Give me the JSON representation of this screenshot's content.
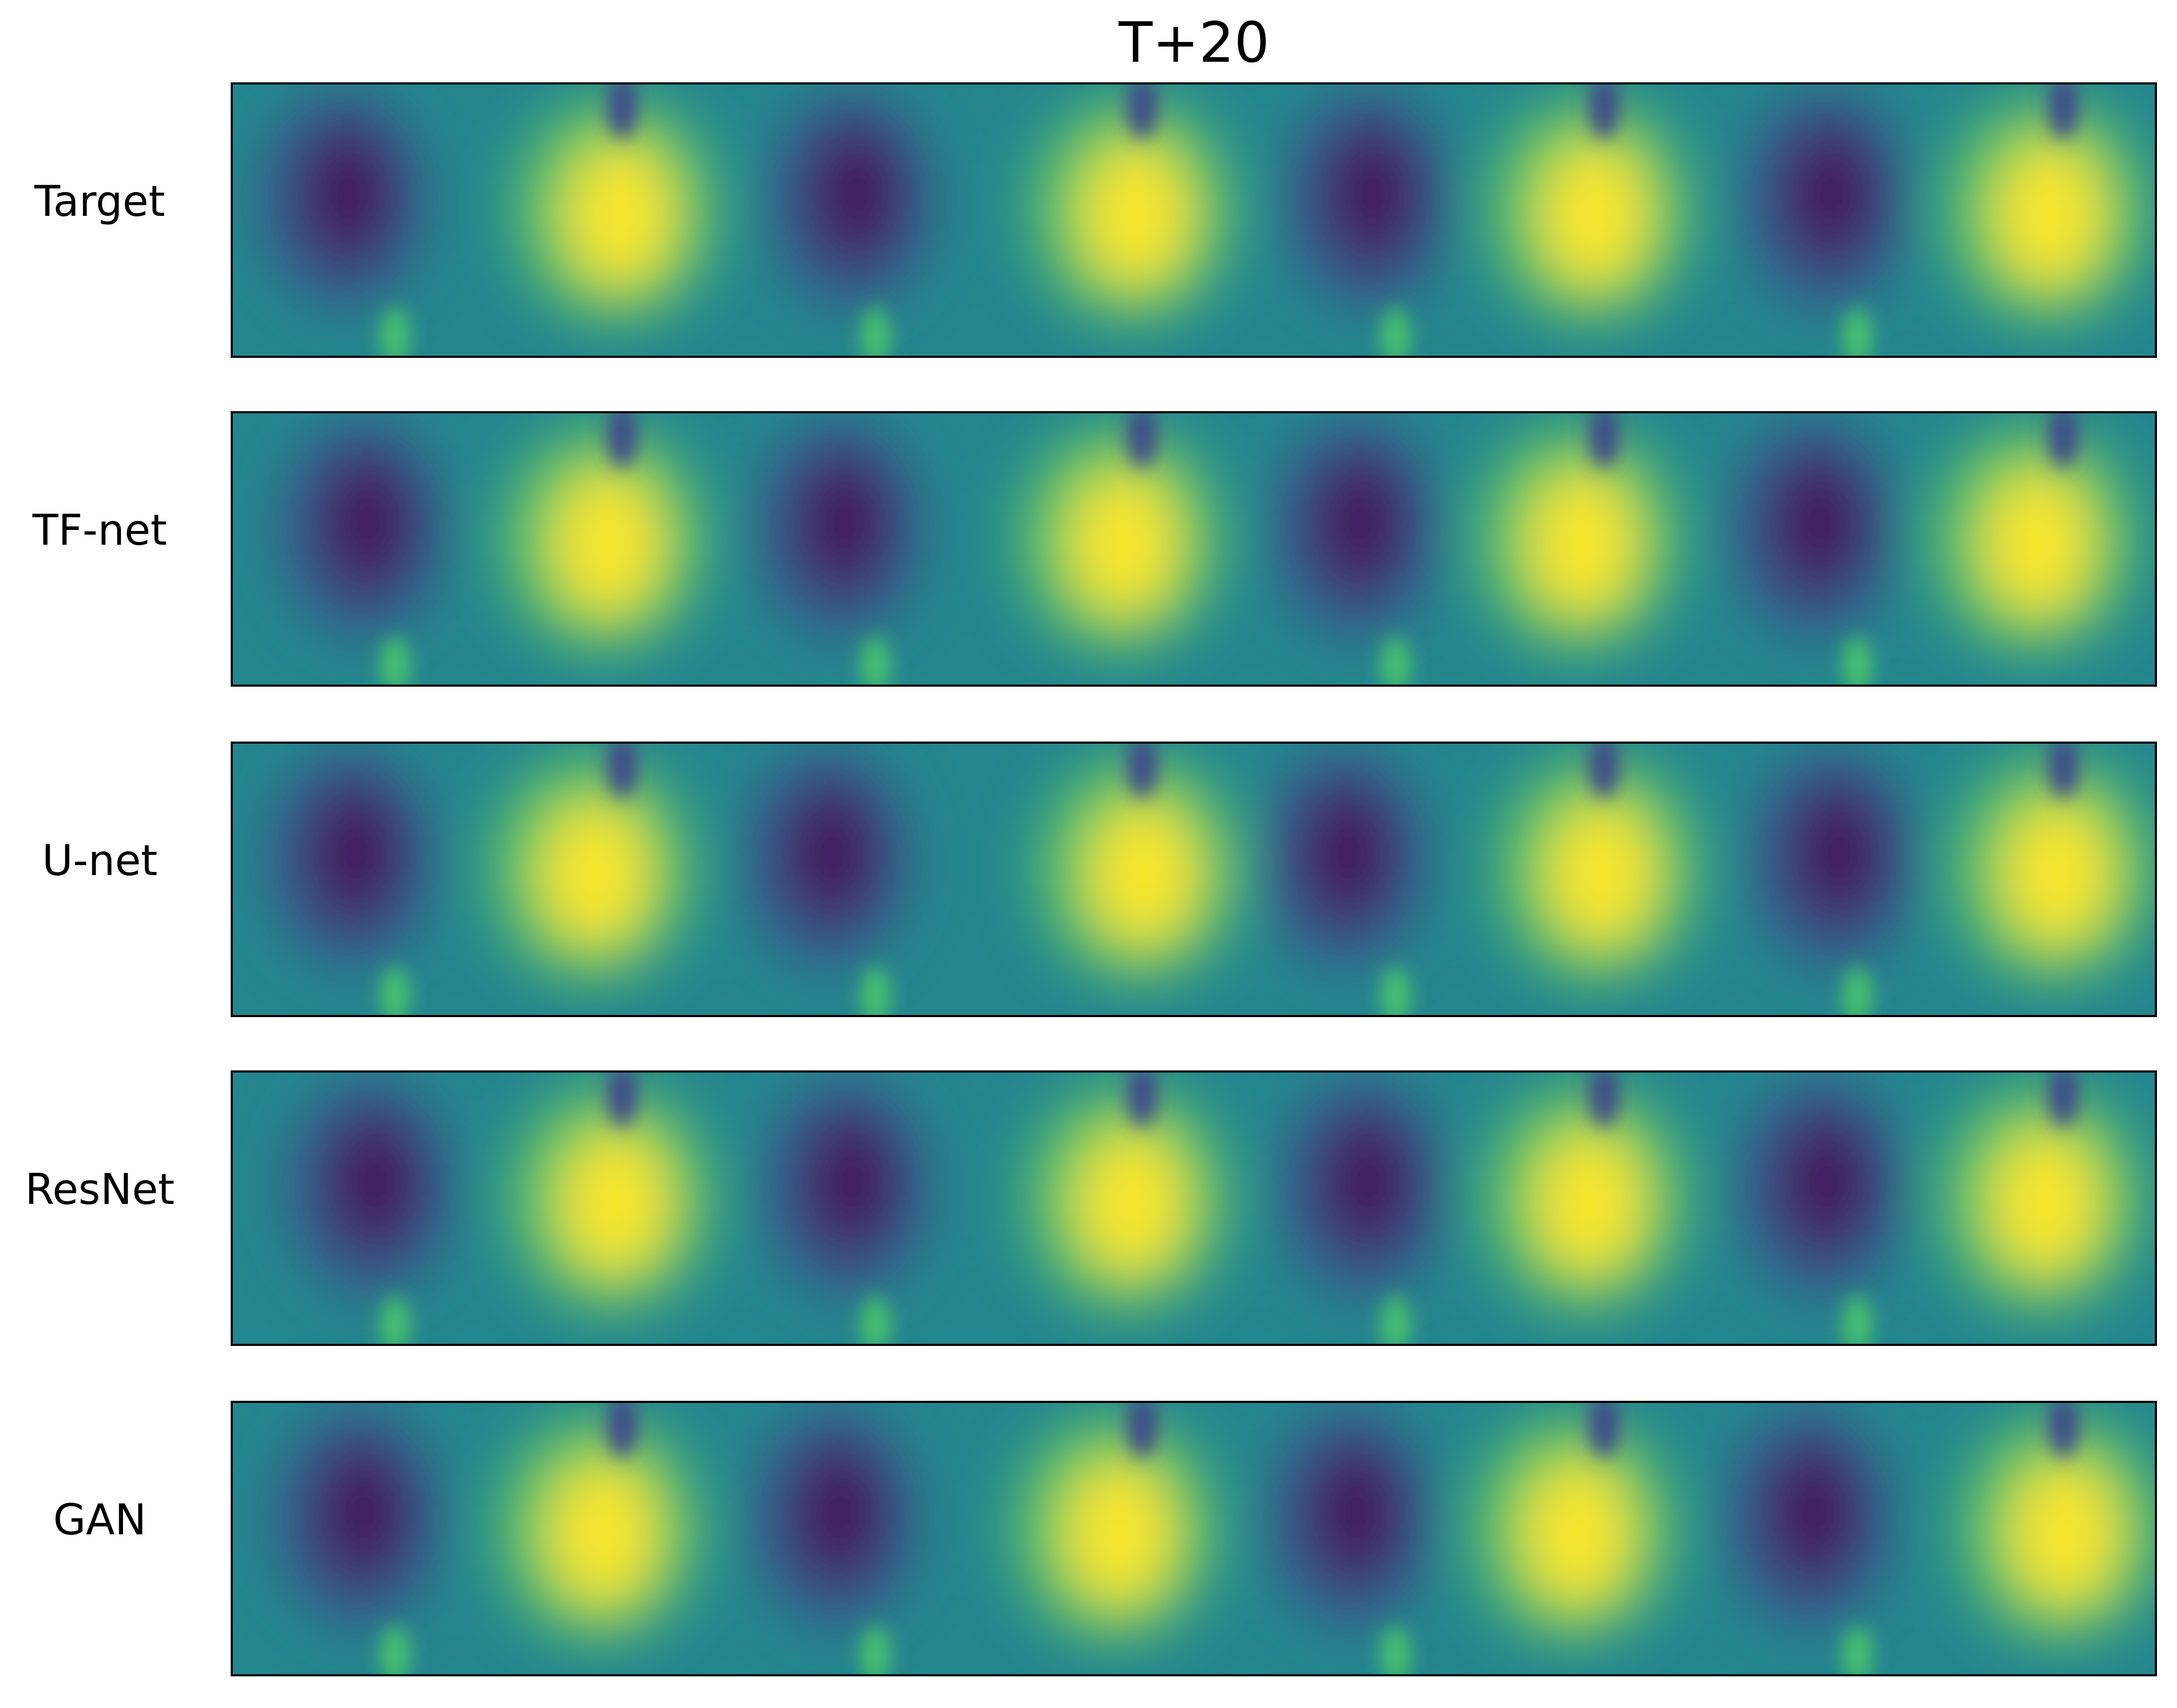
{
  "title": "T+20",
  "row_labels": [
    "Target",
    "TF-net",
    "U-net",
    "ResNet",
    "GAN"
  ]
}
